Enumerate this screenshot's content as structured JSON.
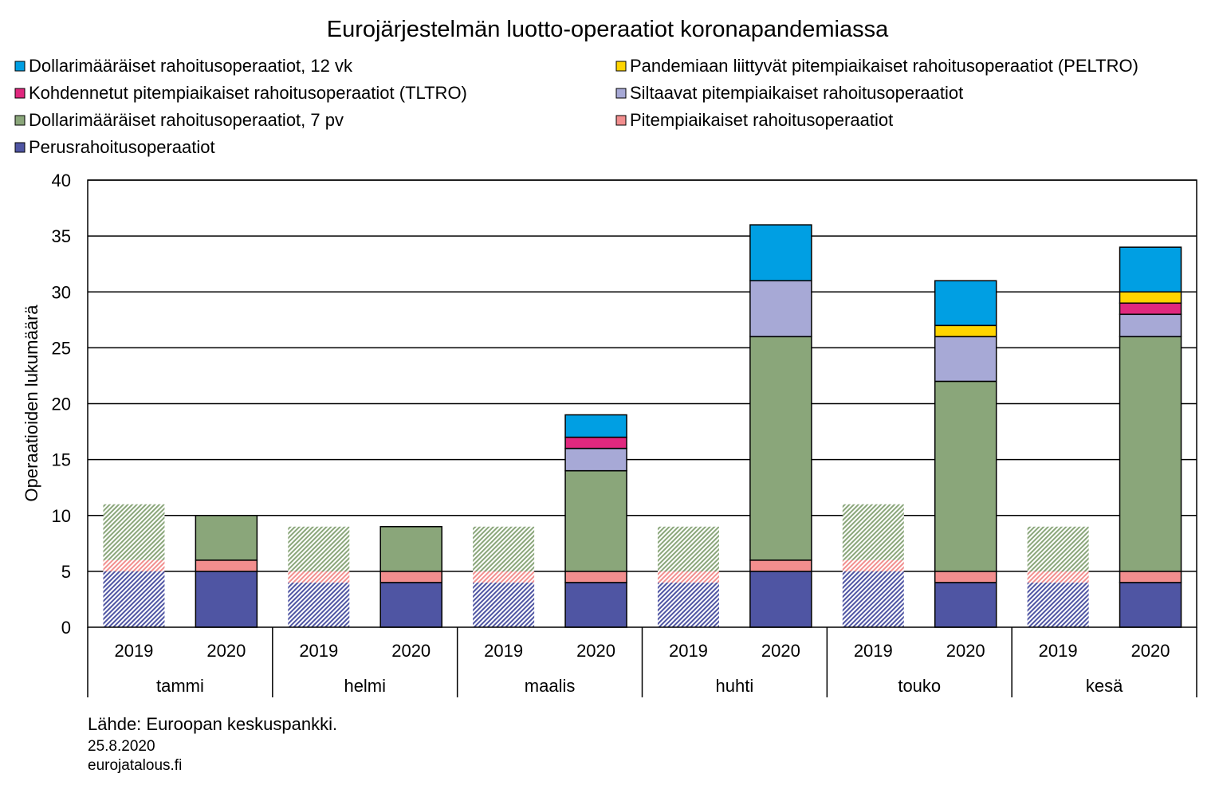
{
  "chart_data": {
    "type": "bar",
    "stacked": true,
    "title": "Eurojärjestelmän luotto-operaatiot koronapandemiassa",
    "ylabel": "Operaatioiden lukumäärä",
    "ylim": [
      0,
      40
    ],
    "yticks": [
      0,
      5,
      10,
      15,
      20,
      25,
      30,
      35,
      40
    ],
    "grid": true,
    "legend_position": "top",
    "groups": [
      "tammi",
      "helmi",
      "maalis",
      "huhti",
      "touko",
      "kesä"
    ],
    "years": [
      "2019",
      "2020"
    ],
    "categories": [
      "tammi 2019",
      "tammi 2020",
      "helmi 2019",
      "helmi 2020",
      "maalis 2019",
      "maalis 2020",
      "huhti 2019",
      "huhti 2020",
      "touko 2019",
      "touko 2020",
      "kesä 2019",
      "kesä 2020"
    ],
    "hatched_categories": [
      "tammi 2019",
      "helmi 2019",
      "maalis 2019",
      "huhti 2019",
      "touko 2019",
      "kesä 2019"
    ],
    "series": [
      {
        "name": "Perusrahoitusoperaatiot",
        "color": "#4f55a3",
        "values": [
          5,
          5,
          4,
          4,
          4,
          4,
          4,
          5,
          5,
          4,
          4,
          4
        ]
      },
      {
        "name": "Pitempiaikaiset rahoitusoperaatiot",
        "color": "#f28e8e",
        "values": [
          1,
          1,
          1,
          1,
          1,
          1,
          1,
          1,
          1,
          1,
          1,
          1
        ]
      },
      {
        "name": "Dollarimääräiset rahoitusoperaatiot, 7 pv",
        "color": "#8aa67a",
        "values": [
          5,
          4,
          4,
          4,
          4,
          9,
          4,
          20,
          5,
          17,
          4,
          21
        ]
      },
      {
        "name": "Siltaavat pitempiaikaiset rahoitusoperaatiot",
        "color": "#a7a9d6",
        "values": [
          0,
          0,
          0,
          0,
          0,
          2,
          0,
          5,
          0,
          4,
          0,
          2
        ]
      },
      {
        "name": "Kohdennetut pitempiaikaiset rahoitusoperaatiot (TLTRO)",
        "color": "#e0287e",
        "values": [
          0,
          0,
          0,
          0,
          0,
          1,
          0,
          0,
          0,
          0,
          0,
          1
        ]
      },
      {
        "name": "Pandemiaan liittyvät pitempiaikaiset rahoitusoperaatiot (PELTRO)",
        "color": "#ffd400",
        "values": [
          0,
          0,
          0,
          0,
          0,
          0,
          0,
          0,
          0,
          1,
          0,
          1
        ]
      },
      {
        "name": "Dollarimääräiset rahoitusoperaatiot, 12 vk",
        "color": "#009fe3",
        "values": [
          0,
          0,
          0,
          0,
          0,
          2,
          0,
          5,
          0,
          4,
          0,
          4
        ]
      }
    ],
    "legend_order": [
      "Dollarimääräiset rahoitusoperaatiot, 12 vk",
      "Pandemiaan liittyvät pitempiaikaiset rahoitusoperaatiot (PELTRO)",
      "Kohdennetut pitempiaikaiset rahoitusoperaatiot (TLTRO)",
      "Siltaavat pitempiaikaiset rahoitusoperaatiot",
      "Dollarimääräiset rahoitusoperaatiot, 7 pv",
      "Pitempiaikaiset rahoitusoperaatiot",
      "Perusrahoitusoperaatiot"
    ]
  },
  "footer": {
    "source": "Lähde: Euroopan keskuspankki.",
    "date": "25.8.2020",
    "site": "eurojatalous.fi"
  },
  "colors": {
    "footer_gray": "#8c8c8c",
    "axis": "#000000",
    "grid": "#000000"
  }
}
